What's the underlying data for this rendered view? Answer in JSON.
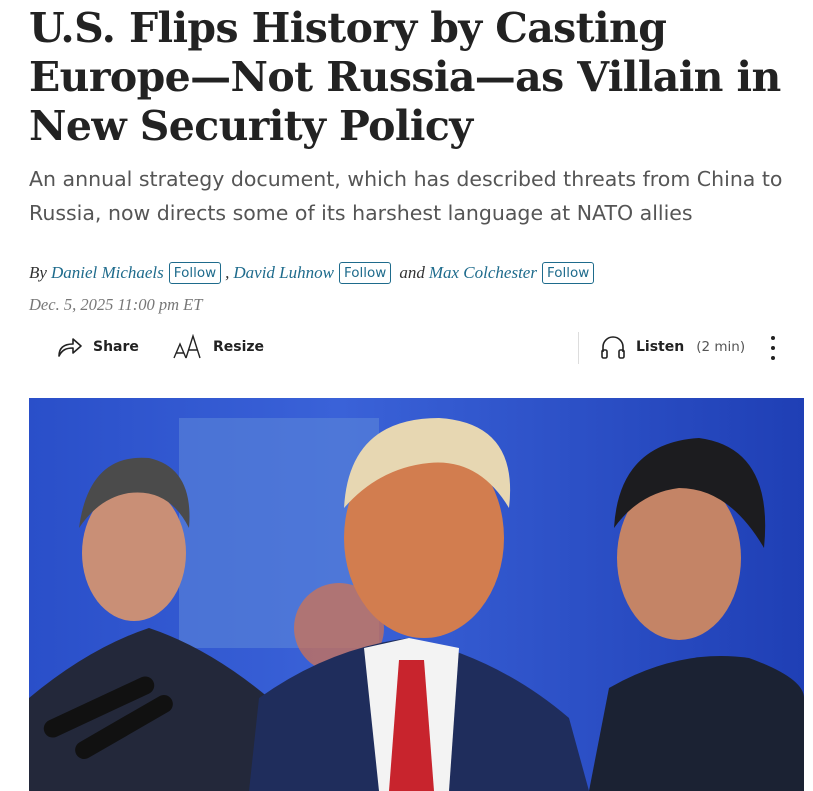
{
  "article": {
    "headline": "U.S. Flips History by Casting Europe—Not Russia—as Villain in New Security Policy",
    "dek": "An annual strategy document, which has described threats from China to Russia, now directs some of its harshest language at NATO allies",
    "byline": {
      "by": "By",
      "authors": [
        {
          "name": "Daniel Michaels",
          "follow": "Follow"
        },
        {
          "name": "David Luhnow",
          "follow": "Follow"
        },
        {
          "name": "Max Colchester",
          "follow": "Follow"
        }
      ],
      "sep1": ",",
      "and": "and"
    },
    "date": "Dec. 5, 2025 11:00 pm ET"
  },
  "toolbar": {
    "share": "Share",
    "resize": "Resize",
    "listen": "Listen",
    "listen_duration": "(2 min)",
    "icons": [
      "share-icon",
      "resize-icon",
      "headphones-icon",
      "more-vertical-icon"
    ]
  },
  "colors": {
    "link": "#1e6b8c",
    "headline": "#222222",
    "dek": "#555555"
  }
}
